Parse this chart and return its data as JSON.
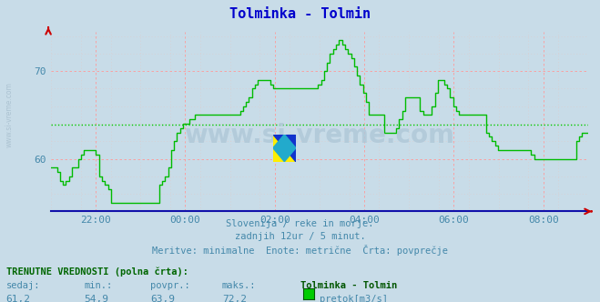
{
  "title": "Tolminka - Tolmin",
  "title_color": "#0000cc",
  "bg_color": "#c8dce8",
  "plot_bg_color": "#c8dce8",
  "grid_color_major": "#ff9999",
  "grid_color_minor": "#ddcccc",
  "avg_line_value": 63.9,
  "avg_line_color": "#00cc00",
  "line_color": "#00bb00",
  "ylim": [
    54.0,
    74.5
  ],
  "yticks": [
    60,
    70
  ],
  "xtick_labels": [
    "22:00",
    "00:00",
    "02:00",
    "04:00",
    "06:00",
    "08:00"
  ],
  "tick_color": "#4488aa",
  "subtitle_lines": [
    "Slovenija / reke in morje.",
    "zadnjih 12ur / 5 minut.",
    "Meritve: minimalne  Enote: metrične  Črta: povprečje"
  ],
  "subtitle_color": "#4488aa",
  "bottom_label1": "TRENUTNE VREDNOSTI (polna črta):",
  "bottom_col_headers": [
    "sedaj:",
    "min.:",
    "povpr.:",
    "maks.:",
    "Tolminka - Tolmin"
  ],
  "bottom_values": [
    "61,2",
    "54,9",
    "63,9",
    "72,2"
  ],
  "bottom_legend": "pretok[m3/s]",
  "watermark": "www.si-vreme.com",
  "flow_data": [
    59.0,
    59.0,
    58.5,
    57.5,
    57.0,
    57.5,
    58.0,
    59.0,
    59.0,
    60.0,
    60.5,
    61.0,
    61.0,
    61.0,
    61.0,
    60.5,
    58.0,
    57.5,
    57.0,
    56.5,
    55.0,
    55.0,
    55.0,
    55.0,
    55.0,
    55.0,
    55.0,
    55.0,
    55.0,
    55.0,
    55.0,
    55.0,
    55.0,
    55.0,
    55.0,
    55.0,
    57.0,
    57.5,
    58.0,
    59.0,
    61.0,
    62.0,
    63.0,
    63.5,
    64.0,
    64.0,
    64.5,
    64.5,
    65.0,
    65.0,
    65.0,
    65.0,
    65.0,
    65.0,
    65.0,
    65.0,
    65.0,
    65.0,
    65.0,
    65.0,
    65.0,
    65.0,
    65.0,
    65.5,
    66.0,
    66.5,
    67.0,
    68.0,
    68.5,
    69.0,
    69.0,
    69.0,
    69.0,
    68.5,
    68.0,
    68.0,
    68.0,
    68.0,
    68.0,
    68.0,
    68.0,
    68.0,
    68.0,
    68.0,
    68.0,
    68.0,
    68.0,
    68.0,
    68.0,
    68.5,
    69.0,
    70.0,
    71.0,
    72.0,
    72.5,
    73.0,
    73.5,
    73.0,
    72.5,
    72.0,
    71.5,
    70.5,
    69.5,
    68.5,
    67.5,
    66.5,
    65.0,
    65.0,
    65.0,
    65.0,
    65.0,
    63.0,
    63.0,
    63.0,
    63.0,
    63.5,
    64.5,
    65.5,
    67.0,
    67.0,
    67.0,
    67.0,
    67.0,
    65.5,
    65.0,
    65.0,
    65.0,
    66.0,
    67.5,
    69.0,
    69.0,
    68.5,
    68.0,
    67.0,
    66.0,
    65.5,
    65.0,
    65.0,
    65.0,
    65.0,
    65.0,
    65.0,
    65.0,
    65.0,
    65.0,
    63.0,
    62.5,
    62.0,
    61.5,
    61.0,
    61.0,
    61.0,
    61.0,
    61.0,
    61.0,
    61.0,
    61.0,
    61.0,
    61.0,
    61.0,
    60.5,
    60.0,
    60.0,
    60.0,
    60.0,
    60.0,
    60.0,
    60.0,
    60.0,
    60.0,
    60.0,
    60.0,
    60.0,
    60.0,
    60.0,
    62.0,
    62.5,
    63.0,
    63.0,
    63.0
  ]
}
